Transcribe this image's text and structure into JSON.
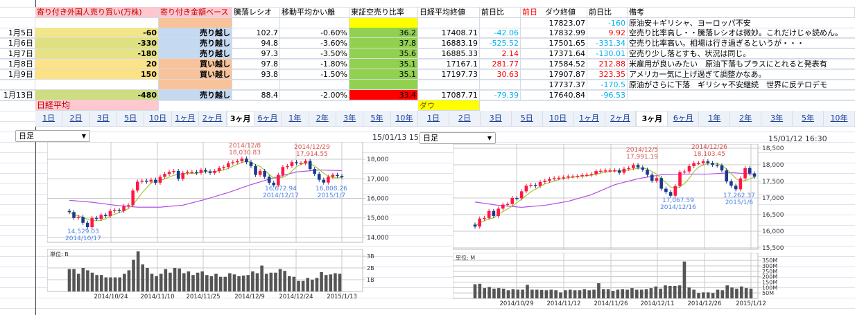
{
  "sheet": {
    "headers": [
      "",
      "寄り付き外国人売り買い(万株)",
      "寄り付き金額ベース",
      "騰落レシオ",
      "移動平均かい離",
      "東証空売り比率",
      "日経平均終値",
      "前日比",
      "ダウ終値",
      "前日比",
      "備考"
    ],
    "dow_header_prefix": "前日",
    "rows": [
      {
        "date": "",
        "foreign": "",
        "base": "",
        "ratio": "",
        "dev": "",
        "short": "",
        "nikkei": "",
        "nchg": "",
        "dow": "17823.07",
        "dchg": "-160",
        "note": "原油安＋ギリシャ、ヨーロッパ不安",
        "fc": "#ffffff",
        "bc": "#f8c39a",
        "sc": "#ffff00"
      },
      {
        "date": "1月5日",
        "foreign": "-60",
        "base": "売り越し",
        "ratio": "102.7",
        "dev": "-0.60%",
        "short": "36.2",
        "nikkei": "17408.71",
        "nchg": "-42.06",
        "dow": "17832.99",
        "dchg": "9.92",
        "note": "空売り比率高し・・騰落レシオは微妙。これだけじゃ読めん。",
        "fc": "#f2e68a",
        "bc": "#c5d9f1",
        "sc": "#92d050"
      },
      {
        "date": "1月6日",
        "foreign": "-330",
        "base": "売り越し",
        "ratio": "94.8",
        "dev": "-3.60%",
        "short": "37.8",
        "nikkei": "16883.19",
        "nchg": "-525.52",
        "dow": "17501.65",
        "dchg": "-331.34",
        "note": "空売り比率高い。相場は行き過ぎるというが・・・",
        "fc": "#dfe07f",
        "bc": "#c5d9f1",
        "sc": "#92d050"
      },
      {
        "date": "1月7日",
        "foreign": "-180",
        "base": "売り越し",
        "ratio": "97.3",
        "dev": "-3.50%",
        "short": "35.6",
        "nikkei": "16885.33",
        "nchg": "2.14",
        "dow": "17371.64",
        "dchg": "-130.01",
        "note": "空売り少し落とすも、状況は同じ。",
        "fc": "#e6e384",
        "bc": "#c5d9f1",
        "sc": "#92d050"
      },
      {
        "date": "1月8日",
        "foreign": "20",
        "base": "買い越し",
        "ratio": "97.8",
        "dev": "-1.80%",
        "short": "35.1",
        "nikkei": "17167.1",
        "nchg": "281.77",
        "dow": "17584.52",
        "dchg": "212.88",
        "note": "米雇用が良いみたい　原油下落もプラスにとれると発表有",
        "fc": "#fbe38a",
        "bc": "#f8c39a",
        "sc": "#92d050"
      },
      {
        "date": "1月9日",
        "foreign": "150",
        "base": "買い越し",
        "ratio": "93.8",
        "dev": "-1.50%",
        "short": "35.1",
        "nikkei": "17197.73",
        "nchg": "30.63",
        "dow": "17907.87",
        "dchg": "323.35",
        "note": "アメリカ一気に上げ過ぎて調整かなあ。",
        "fc": "#fde284",
        "bc": "#f8c39a",
        "sc": "#92d050"
      },
      {
        "date": "",
        "foreign": "",
        "base": "",
        "ratio": "",
        "dev": "",
        "short": "",
        "nikkei": "",
        "nchg": "",
        "dow": "17737.37",
        "dchg": "-170.5",
        "note": "原油がさらに下落　ギリシャ不安継続　世界に反テロデモ",
        "fc": "#ffffff",
        "bc": "#f8c39a",
        "sc": "#92d050"
      },
      {
        "date": "1月13日",
        "foreign": "-480",
        "base": "売り越し",
        "ratio": "88.4",
        "dev": "-2.00%",
        "short": "33.4",
        "nikkei": "17087.71",
        "nchg": "-79.39",
        "dow": "17640.84",
        "dchg": "-96.53",
        "note": "",
        "fc": "#cedd80",
        "bc": "#c5d9f1",
        "sc": "#ff0000"
      }
    ],
    "label_nikkei": "日経平均",
    "label_dow": "ダウ",
    "colors": {
      "header_text": "#c00000",
      "header_bg": "#ffc7ce",
      "negative": "#00b0f0",
      "positive": "#ff0000",
      "dow_label_bg": "#ffff00"
    }
  },
  "tabs": [
    "1日",
    "2日",
    "3日",
    "5日",
    "10日",
    "1ヶ月",
    "2ヶ月",
    "3ヶ月",
    "6ヶ月",
    "1年",
    "2年",
    "3年",
    "5年",
    "10年"
  ],
  "selected_tab": "3ヶ月",
  "left_panel": {
    "dropdown": "日足",
    "timestamp": "15/01/13 15:"
  },
  "right_panel": {
    "dropdown": "日足",
    "timestamp": "15/01/12 16:30"
  },
  "chart_data": [
    {
      "type": "candlestick",
      "ylim": [
        14000,
        18500
      ],
      "yticks": [
        "18,000",
        "17,000",
        "16,000",
        "15,000",
        "14,000"
      ],
      "close": [
        15300,
        15000,
        15050,
        14750,
        14529,
        15000,
        14950,
        15150,
        15100,
        15350,
        15400,
        15350,
        15600,
        15650,
        16400,
        16850,
        16900,
        16850,
        16950,
        16800,
        17100,
        17250,
        17350,
        17400,
        17000,
        17300,
        17350,
        17350,
        17300,
        17450,
        17380,
        17300,
        17400,
        17550,
        17600,
        17800,
        17850,
        17900,
        18030,
        17850,
        17650,
        17200,
        17400,
        17100,
        16800,
        16673,
        17200,
        17600,
        17650,
        17850,
        17800,
        17800,
        17914,
        17500,
        17250,
        16950,
        16808,
        17100,
        17200,
        17150,
        17087
      ],
      "ma_long": [
        15900,
        15800,
        15650,
        15550,
        15550,
        15650,
        15950,
        16300,
        16700,
        17050,
        17350,
        17450,
        17420
      ],
      "annotations": {
        "high1": [
          "2014/12/8",
          "18,030.83"
        ],
        "high2": [
          "2014/12/29",
          "17,914.55"
        ],
        "low1": [
          "14,529.03",
          "2014/10/17"
        ],
        "low2": [
          "16,672.94",
          "2014/12/17"
        ],
        "low3": [
          "16,808.26",
          "2015/1/7"
        ]
      },
      "volume": {
        "unit_label": "単位: B",
        "yticks": [
          "3B",
          "2B",
          "1B"
        ],
        "values": [
          1.9,
          1.9,
          1.5,
          2.0,
          1.8,
          1.6,
          1.4,
          1.4,
          1.2,
          1.2,
          1.2,
          1.2,
          1.5,
          1.8,
          2.7,
          3.4,
          2.3,
          2.0,
          1.5,
          1.3,
          1.5,
          1.9,
          1.6,
          2.0,
          1.95,
          1.55,
          1.7,
          1.4,
          1.6,
          1.7,
          1.4,
          1.3,
          1.5,
          1.25,
          1.25,
          1.55,
          1.45,
          1.3,
          1.35,
          1.4,
          1.7,
          1.55,
          2.2,
          1.5,
          1.6,
          1.6,
          1.9,
          1.75,
          1.3,
          1.25,
          0.9,
          0.9,
          1.15,
          1.0,
          1.15,
          1.65,
          1.4,
          1.45,
          1.55,
          1.5
        ],
        "xticks": [
          "2014/10/24",
          "2014/11/10",
          "2014/11/25",
          "2014/12/9",
          "2014/12/24",
          "2015/1/13"
        ]
      }
    },
    {
      "type": "candlestick",
      "ylim": [
        15500,
        18500
      ],
      "yticks": [
        "18,500",
        "18,000",
        "17,500",
        "17,000",
        "16,500",
        "16,000",
        "15,500"
      ],
      "close": [
        16140,
        16380,
        16400,
        16610,
        16460,
        16680,
        16800,
        16820,
        17000,
        16990,
        17200,
        17370,
        17390,
        17360,
        17480,
        17520,
        17570,
        17600,
        17610,
        17620,
        17650,
        17650,
        17660,
        17690,
        17700,
        17720,
        17810,
        17820,
        17830,
        17830,
        17830,
        17760,
        17880,
        17900,
        17991,
        17920,
        17850,
        17700,
        17520,
        17600,
        17280,
        17180,
        17068,
        17360,
        17780,
        17800,
        17960,
        18050,
        18050,
        18103,
        18050,
        18000,
        17980,
        17830,
        17500,
        17371,
        17262,
        17590,
        17900,
        17740,
        17640
      ],
      "ma_long": [
        16880,
        16780,
        16720,
        16780,
        16900,
        17100,
        17400,
        17580,
        17700,
        17720,
        17720,
        17760,
        17720
      ],
      "annotations": {
        "high1": [
          "2014/12/5",
          "17,991.19"
        ],
        "high2": [
          "2014/12/26",
          "18,103.45"
        ],
        "low1": [
          "17,067.59",
          "2014/12/16"
        ],
        "low2": [
          "17,262.37",
          "2015/1/6"
        ]
      },
      "volume": {
        "unit_label": "単位: M",
        "yticks": [
          "350M",
          "300M",
          "250M",
          "200M",
          "150M",
          "100M",
          "50M"
        ],
        "values": [
          130,
          135,
          95,
          105,
          90,
          95,
          90,
          75,
          85,
          80,
          80,
          125,
          80,
          80,
          78,
          75,
          80,
          75,
          55,
          75,
          80,
          75,
          75,
          85,
          75,
          80,
          140,
          85,
          85,
          70,
          80,
          85,
          80,
          95,
          80,
          80,
          85,
          95,
          110,
          90,
          120,
          115,
          115,
          120,
          340,
          100,
          80,
          50,
          55,
          55,
          50,
          80,
          75,
          120,
          100,
          90,
          110,
          95,
          90
        ],
        "xticks": [
          "2014/10/29",
          "2014/11/12",
          "2014/11/26",
          "2014/12/11",
          "2014/12/26",
          "2015/1/12"
        ]
      }
    }
  ]
}
